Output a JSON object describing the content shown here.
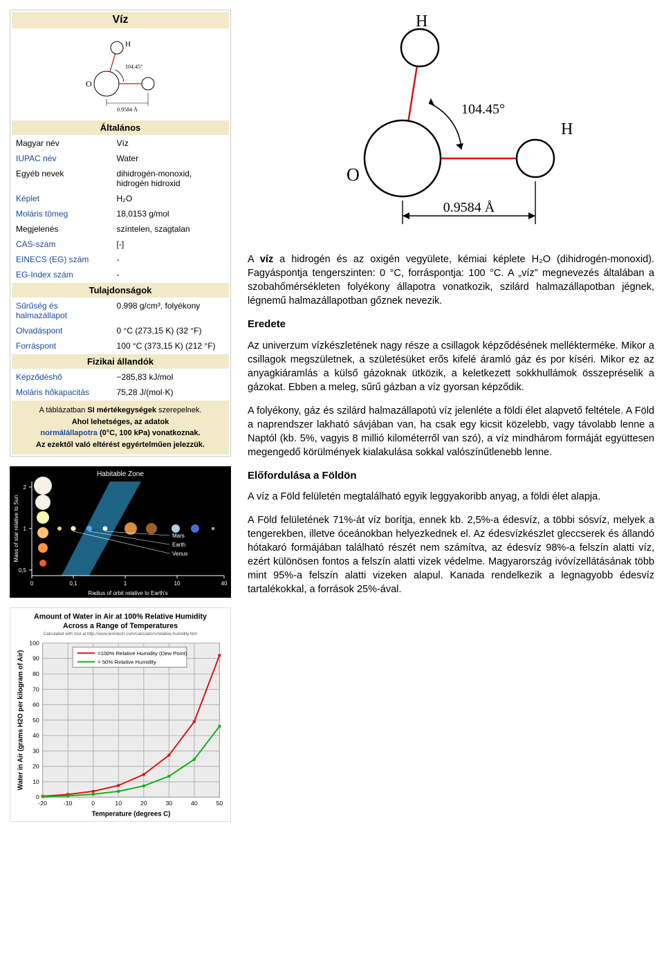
{
  "infobox": {
    "title": "Víz",
    "section_general": "Általános",
    "section_props": "Tulajdonságok",
    "section_phys": "Fizikai állandók",
    "rows_general": [
      {
        "k": "Magyar név",
        "v": "Víz",
        "link": false
      },
      {
        "k": "IUPAC név",
        "v": "Water",
        "link": true
      },
      {
        "k": "Egyéb nevek",
        "v": "dihidrogén-monoxid,\nhidrogén hidroxid",
        "link": false
      },
      {
        "k": "Képlet",
        "v": "H₂O",
        "link": true
      },
      {
        "k": "Moláris tömeg",
        "v": "18,0153 g/mol",
        "link": true
      },
      {
        "k": "Megjelenés",
        "v": "színtelen, szagtalan",
        "link": false
      },
      {
        "k": "CAS-szám",
        "v": "[-]",
        "link": true
      },
      {
        "k": "EINECS (EG) szám",
        "v": "-",
        "link": true
      },
      {
        "k": "EG-Index szám",
        "v": "-",
        "link": true
      }
    ],
    "rows_props": [
      {
        "k": "Sűrűség és halmazállapot",
        "v": "0,998 g/cm³, folyékony",
        "link": true
      },
      {
        "k": "Olvadáspont",
        "v": "0 °C (273,15 K) (32 °F)",
        "link": true
      },
      {
        "k": "Forráspont",
        "v": "100 °C (373,15 K) (212 °F)",
        "link": true
      }
    ],
    "rows_phys": [
      {
        "k": "Képződéshő",
        "v": "−285,83 kJ/mol",
        "link": true
      },
      {
        "k": "Moláris hőkapacitás",
        "v": "75,28 J/(mol·K)",
        "link": true
      }
    ],
    "footer_line1_a": "A táblázatban ",
    "footer_line1_b": "SI mértékegységek",
    "footer_line1_c": " szerepelnek.",
    "footer_line2": "Ahol lehetséges, az adatok",
    "footer_line3_a": "normálállapotra",
    "footer_line3_b": " (0°C, 100 kPa) vonatkoznak.",
    "footer_line4": "Az ezektől való eltérést egyértelműen jelezzük.",
    "small_diagram": {
      "angle": "104.45°",
      "bond": "0.9584 Å",
      "H": "H",
      "O": "O"
    }
  },
  "molecule_big": {
    "angle": "104.45°",
    "bond": "0.9584 Å",
    "H": "H",
    "O": "O",
    "stroke_black": "#000000",
    "stroke_red": "#d41414",
    "font_family": "Times New Roman, serif"
  },
  "space": {
    "title": "Habitable Zone",
    "y_label": "Mass of star relative to Sun",
    "x_label": "Radius of orbit relative to Earth's",
    "x_ticks": [
      "0",
      "0,1",
      "1",
      "10",
      "40"
    ],
    "y_ticks": [
      "2",
      "1",
      "0,5"
    ],
    "planets": [
      "Mars",
      "Earth",
      "Venus"
    ],
    "bg": "#000000",
    "text": "#ffffff",
    "zone_color": "#1f6e92",
    "star_colors": [
      "#f7f1e6",
      "#f7f1e6",
      "#fff6b0",
      "#ffc071",
      "#ff944d",
      "#ff5a2e"
    ],
    "planet_colors": [
      "#e6d070",
      "#fff4b0",
      "#4fa3ff",
      "#ffffff",
      "#d88b3c",
      "#9e5e2e",
      "#accfe8",
      "#3f70d6",
      "#b4a47a"
    ]
  },
  "humidity": {
    "title1": "Amount of Water in Air at 100% Relative Humidity",
    "title2": "Across a Range of Temperatures",
    "subtitle": "Calculated with tool at http://www.lenntech.com/calculators/relative-humidity.htm",
    "legend100": "=100% Relative Humidity (Dew Point)",
    "legend50": "=  50% Relative Humidity",
    "x_label": "Temperature (degrees C)",
    "y_label": "Water in Air (grams H2O per kilogram of Air)",
    "x_ticks": [
      -20,
      -10,
      0,
      10,
      20,
      30,
      40,
      50
    ],
    "y_ticks": [
      0,
      10,
      20,
      30,
      40,
      50,
      60,
      70,
      80,
      90,
      100
    ],
    "y_lim": [
      0,
      100
    ],
    "x_lim": [
      -20,
      50
    ],
    "series100_color": "#e01010",
    "series50_color": "#10b010",
    "grid_color": "#b0b0b0",
    "bg": "#ececec",
    "data100": [
      [
        -20,
        0.6
      ],
      [
        -10,
        1.8
      ],
      [
        0,
        3.8
      ],
      [
        10,
        7.6
      ],
      [
        20,
        14.7
      ],
      [
        30,
        27.2
      ],
      [
        40,
        49.0
      ],
      [
        50,
        92.0
      ]
    ],
    "data50": [
      [
        -20,
        0.3
      ],
      [
        -10,
        0.9
      ],
      [
        0,
        1.9
      ],
      [
        10,
        3.8
      ],
      [
        20,
        7.3
      ],
      [
        30,
        13.6
      ],
      [
        40,
        24.5
      ],
      [
        50,
        46.0
      ]
    ],
    "title_fontsize": 11,
    "label_fontsize": 10,
    "tick_fontsize": 9
  },
  "article": {
    "lead": "A víz a hidrogén és az oxigén vegyülete, kémiai képlete H₂O (dihidrogén-monoxid). Fagyáspontja tengerszinten: 0 °C, forráspontja: 100 °C. A „víz” megnevezés általában a szobahőmérsékleten folyékony állapotra vonatkozik, szilárd halmazállapotban jégnek, légnemű halmazállapotban gőznek nevezik.",
    "lead_bold_word": "víz",
    "h_origin": "Eredete",
    "p_origin1": "Az univerzum vízkészletének nagy része a csillagok képződésének mellékterméke. Mikor a csillagok megszületnek, a születésüket erős kifelé áramló gáz és por kíséri. Mikor ez az anyagkiáramlás a külső gázoknak ütközik, a keletkezett sokkhullámok összepréselik a gázokat. Ebben a meleg, sűrű gázban a víz gyorsan képződik.",
    "p_origin2": "A folyékony, gáz és szilárd halmazállapotú víz jelenléte a földi élet alapvető feltétele. A Föld a naprendszer lakható sávjában van, ha csak egy kicsit közelebb, vagy távolabb lenne a Naptól (kb. 5%, vagyis 8 millió kilométerről van szó), a víz mindhárom formáját együttesen megengedő körülmények kialakulása sokkal valószínűtlenebb lenne.",
    "h_earth": "Előfordulása a Földön",
    "p_earth1": "A víz a Föld felületén megtalálható egyik leggyakoribb anyag, a földi élet alapja.",
    "p_earth2": "A Föld felületének 71%-át víz borítja, ennek kb. 2,5%-a édesvíz, a többi sósvíz, melyek a tengerekben, illetve óceánokban helyezkednek el. Az édesvízkészlet gleccserek és állandó hótakaró formájában található részét nem számítva, az édesvíz 98%-a felszín alatti víz, ezért különösen fontos a felszín alatti vizek védelme. Magyarország ivóvízellátásának több mint 95%-a felszín alatti vizeken alapul. Kanada rendelkezik a legnagyobb édesvíz tartalékokkal, a források 25%-ával."
  }
}
